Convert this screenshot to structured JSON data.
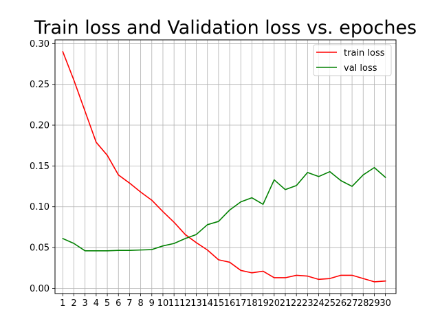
{
  "chart_data": {
    "type": "line",
    "title": "Train loss and Validation loss vs. epoches",
    "xlabel": "",
    "ylabel": "",
    "x": [
      1,
      2,
      3,
      4,
      5,
      6,
      7,
      8,
      9,
      10,
      11,
      12,
      13,
      14,
      15,
      16,
      17,
      18,
      19,
      20,
      21,
      22,
      23,
      24,
      25,
      26,
      27,
      28,
      29,
      30
    ],
    "x_tick_labels": [
      "1",
      "2",
      "3",
      "4",
      "5",
      "6",
      "7",
      "8",
      "9",
      "10",
      "11",
      "12",
      "13",
      "14",
      "15",
      "16",
      "17",
      "18",
      "19",
      "20",
      "21",
      "22",
      "23",
      "24",
      "25",
      "26",
      "27",
      "28",
      "29",
      "30"
    ],
    "y_ticks": [
      0.0,
      0.05,
      0.1,
      0.15,
      0.2,
      0.25,
      0.3
    ],
    "y_tick_labels": [
      "0.00",
      "0.05",
      "0.10",
      "0.15",
      "0.20",
      "0.25",
      "0.30"
    ],
    "xlim": [
      0.3,
      30.95
    ],
    "ylim": [
      -0.0064,
      0.3045
    ],
    "grid": true,
    "legend_position": "top-right",
    "series": [
      {
        "name": "train loss",
        "color": "#ff0000",
        "values": [
          0.29,
          0.255,
          0.217,
          0.179,
          0.163,
          0.139,
          0.129,
          0.118,
          0.108,
          0.094,
          0.081,
          0.066,
          0.056,
          0.047,
          0.035,
          0.032,
          0.022,
          0.019,
          0.021,
          0.013,
          0.013,
          0.016,
          0.015,
          0.011,
          0.012,
          0.016,
          0.016,
          0.012,
          0.008,
          0.009
        ]
      },
      {
        "name": "val loss",
        "color": "#008000",
        "values": [
          0.061,
          0.055,
          0.046,
          0.046,
          0.046,
          0.0465,
          0.0465,
          0.047,
          0.0475,
          0.052,
          0.055,
          0.061,
          0.066,
          0.078,
          0.082,
          0.096,
          0.106,
          0.111,
          0.103,
          0.133,
          0.121,
          0.126,
          0.142,
          0.137,
          0.143,
          0.132,
          0.125,
          0.139,
          0.148,
          0.136
        ]
      }
    ]
  }
}
